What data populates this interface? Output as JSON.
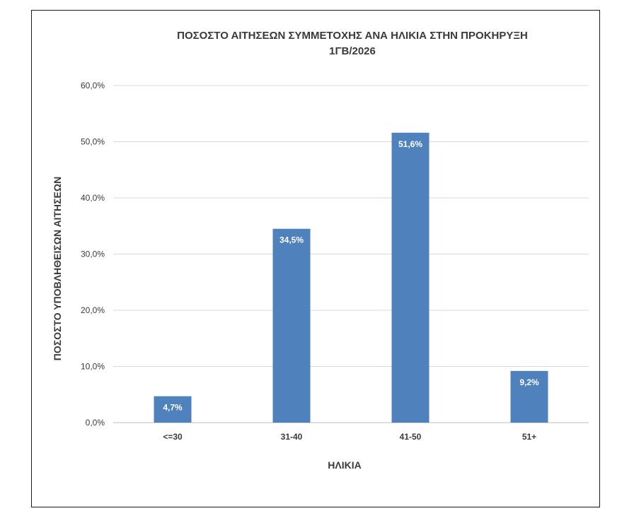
{
  "chart_data": {
    "type": "bar",
    "title_line1": "ΠΟΣΟΣΤΟ ΑΙΤΗΣΕΩΝ ΣΥΜΜΕΤΟΧΗΣ ΑΝΑ ΗΛΙΚΙΑ ΣΤΗΝ ΠΡΟΚΗΡΥΞΗ",
    "title_line2": "1ΓΒ/2026",
    "xlabel": "ΗΛΙΚΙΑ",
    "ylabel": "ΠΟΣΟΣΤΟ ΥΠΟΒΛΗΘΕΙΣΩΝ ΑΙΤΗΣΕΩΝ",
    "categories": [
      "<=30",
      "31-40",
      "41-50",
      "51+"
    ],
    "values": [
      4.7,
      34.5,
      51.6,
      9.2
    ],
    "data_labels": [
      "4,7%",
      "34,5%",
      "51,6%",
      "9,2%"
    ],
    "y_ticks": [
      0,
      10,
      20,
      30,
      40,
      50,
      60
    ],
    "y_tick_labels": [
      "0,0%",
      "10,0%",
      "20,0%",
      "30,0%",
      "40,0%",
      "50,0%",
      "60,0%"
    ],
    "ylim": [
      0,
      60
    ],
    "grid": true,
    "legend": "none",
    "bar_color": "#4f81bd",
    "grid_color": "#d9d9d9",
    "text_color": "#3a3a3a",
    "label_color": "#ffffff"
  }
}
